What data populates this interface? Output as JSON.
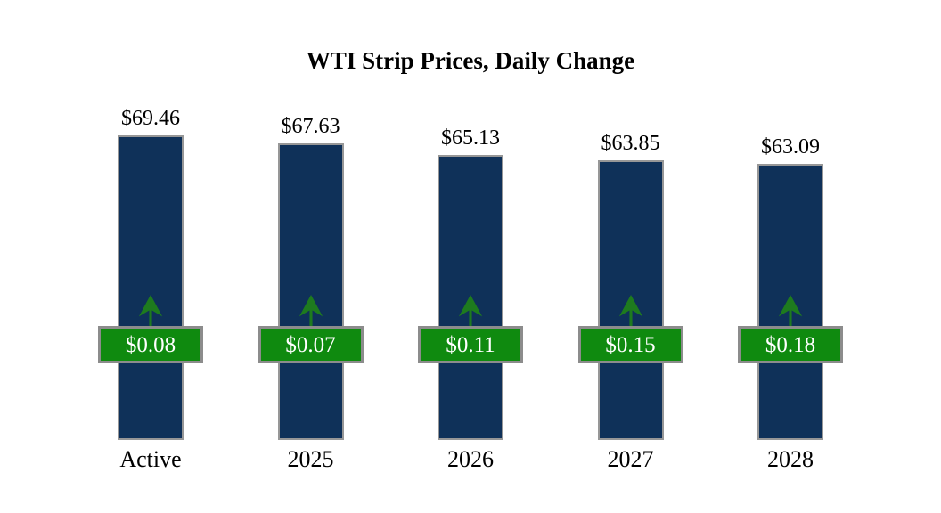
{
  "page": {
    "background": "#ffffff"
  },
  "chart_data": {
    "type": "bar",
    "title": "WTI Strip Prices, Daily Change",
    "categories": [
      "Active",
      "2025",
      "2026",
      "2027",
      "2028"
    ],
    "series": [
      {
        "name": "strip_price",
        "values": [
          69.46,
          67.63,
          65.13,
          63.85,
          63.09
        ],
        "labels": [
          "$69.46",
          "$67.63",
          "$65.13",
          "$63.85",
          "$63.09"
        ]
      },
      {
        "name": "daily_change",
        "values": [
          0.08,
          0.07,
          0.11,
          0.15,
          0.18
        ],
        "labels": [
          "$0.08",
          "$0.07",
          "$0.11",
          "$0.15",
          "$0.18"
        ],
        "direction": "up"
      }
    ],
    "ylim": [
      0,
      70
    ],
    "grid": false,
    "legend": false,
    "xlabel": "",
    "ylabel": "",
    "colors": {
      "bar_fill": "#0f3159",
      "bar_border": "#979797",
      "badge_fill": "#0f8a0f",
      "badge_border": "#8c8c8c",
      "badge_text": "#ffffff",
      "arrow": "#1e7b1e",
      "label_text": "#000000",
      "title_text": "#000000",
      "background": "#ffffff"
    }
  }
}
